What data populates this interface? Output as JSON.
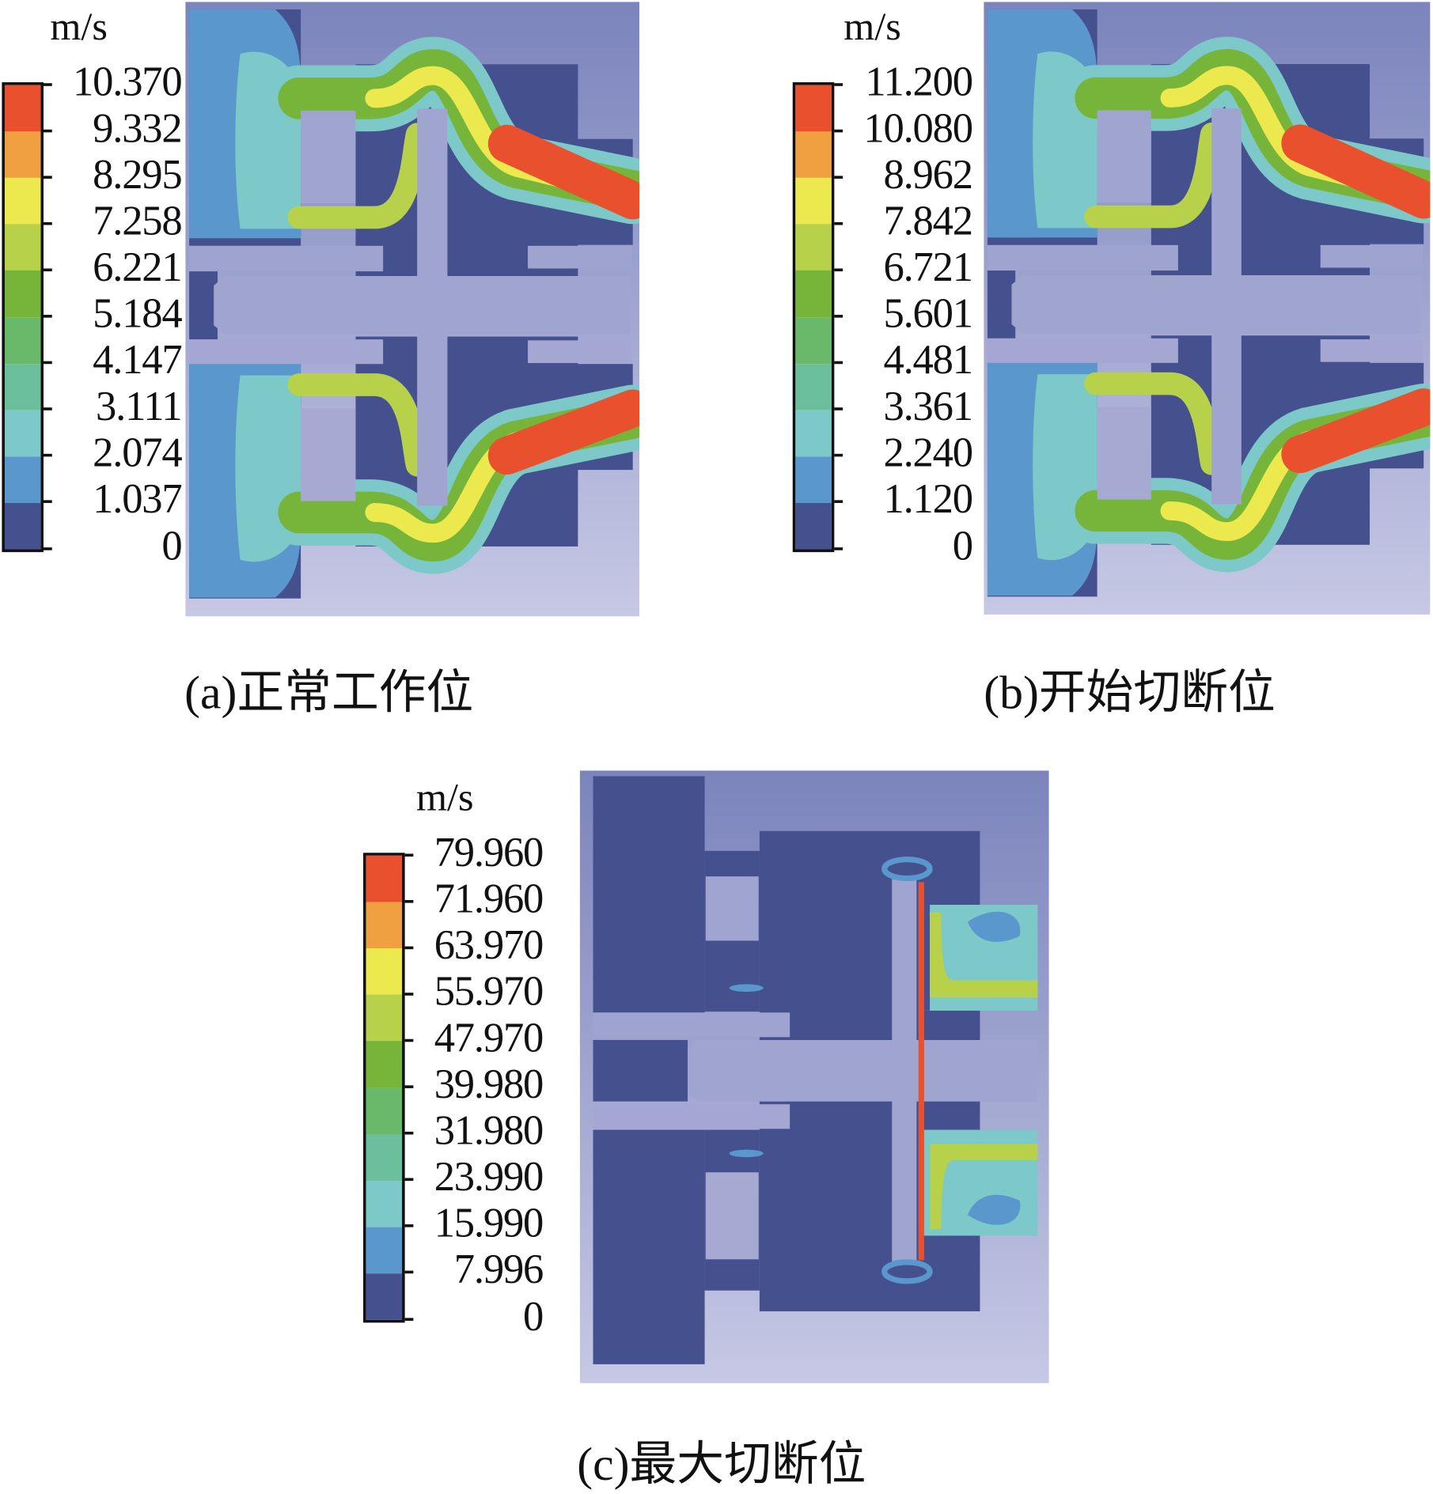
{
  "legend_colors": [
    "#e8502e",
    "#f0a040",
    "#ece94e",
    "#b8d14a",
    "#76b53a",
    "#6ab86a",
    "#6cbf9c",
    "#7dc8c8",
    "#5a97cc",
    "#45508f"
  ],
  "panels": [
    {
      "id": "a",
      "unit": "m/s",
      "ticks": [
        "10.370",
        "9.332",
        "8.295",
        "7.258",
        "6.221",
        "5.184",
        "4.147",
        "3.111",
        "2.074",
        "1.037",
        "0"
      ],
      "caption": "(a)正常工作位"
    },
    {
      "id": "b",
      "unit": "m/s",
      "ticks": [
        "11.200",
        "10.080",
        "8.962",
        "7.842",
        "6.721",
        "5.601",
        "4.481",
        "3.361",
        "2.240",
        "1.120",
        "0"
      ],
      "caption": "(b)开始切断位"
    },
    {
      "id": "c",
      "unit": "m/s",
      "ticks": [
        "79.960",
        "71.960",
        "63.970",
        "55.970",
        "47.970",
        "39.980",
        "31.980",
        "23.990",
        "15.990",
        "7.996",
        "0"
      ],
      "caption": "(c)最大切断位"
    }
  ]
}
